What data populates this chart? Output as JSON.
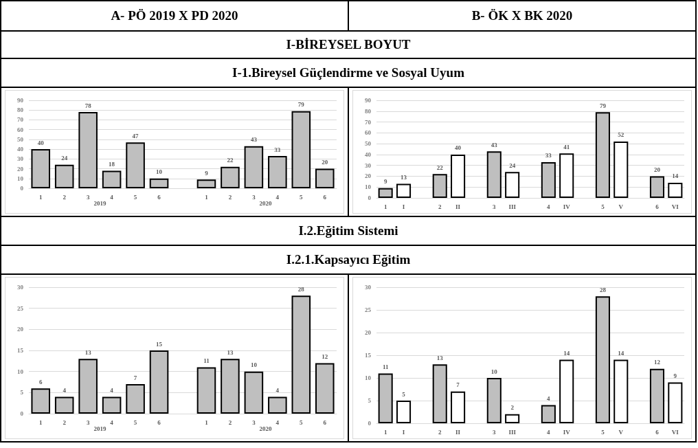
{
  "chart_data": [
    {
      "type": "bar",
      "title": "A-  PÖ 2019 X PD 2020",
      "subtitle": "I-BİREYSEL BOYUT",
      "categories": [
        "1",
        "2",
        "3",
        "4",
        "5",
        "6",
        null,
        "1",
        "2",
        "3",
        "4",
        "5",
        "6"
      ],
      "values": [
        40,
        24,
        78,
        18,
        47,
        10,
        null,
        9,
        22,
        43,
        33,
        79,
        20
      ],
      "color": "#bfbfbf",
      "annotations": [
        "2019",
        "2020"
      ],
      "ylim": [
        0,
        90
      ],
      "yticks": [
        0,
        10,
        20,
        30,
        40,
        50,
        60,
        70,
        80,
        90
      ],
      "grid": "y",
      "data_labels": true
    },
    {
      "type": "bar",
      "title": "B-  ÖK  X  BK  2020",
      "subtitle": "I-1.Bireysel Güçlendirme ve Sosyal Uyum",
      "categories": [
        "1",
        "I",
        null,
        "2",
        "II",
        null,
        "3",
        "III",
        null,
        "4",
        "IV",
        null,
        "5",
        "V",
        null,
        "6",
        "VI"
      ],
      "values": [
        9,
        13,
        null,
        22,
        40,
        null,
        43,
        24,
        null,
        33,
        41,
        null,
        79,
        52,
        null,
        20,
        14
      ],
      "colors": [
        "#bfbfbf",
        "#ffffff",
        null,
        "#bfbfbf",
        "#ffffff",
        null,
        "#bfbfbf",
        "#ffffff",
        null,
        "#bfbfbf",
        "#ffffff",
        null,
        "#bfbfbf",
        "#ffffff",
        null,
        "#bfbfbf",
        "#ffffff"
      ],
      "ylim": [
        0,
        90
      ],
      "yticks": [
        0,
        10,
        20,
        30,
        40,
        50,
        60,
        70,
        80,
        90
      ],
      "grid": "y",
      "data_labels": true
    },
    {
      "type": "bar",
      "subtitle": "I.2.Eğitim Sistemi",
      "categories": [
        "1",
        "2",
        "3",
        "4",
        "5",
        "6",
        null,
        "1",
        "2",
        "3",
        "4",
        "5",
        "6"
      ],
      "values": [
        6,
        4,
        13,
        4,
        7,
        15,
        null,
        11,
        13,
        10,
        4,
        28,
        12
      ],
      "color": "#bfbfbf",
      "annotations": [
        "2019",
        "2020"
      ],
      "ylim": [
        0,
        30
      ],
      "yticks": [
        0,
        5,
        10,
        15,
        20,
        25,
        30
      ],
      "grid": "y",
      "data_labels": true
    },
    {
      "type": "bar",
      "subtitle": "I.2.1.Kapsayıcı Eğitim",
      "categories": [
        "1",
        "I",
        null,
        "2",
        "II",
        null,
        "3",
        "III",
        null,
        "4",
        "IV",
        null,
        "5",
        "V",
        null,
        "6",
        "VI"
      ],
      "values": [
        11,
        5,
        null,
        13,
        7,
        null,
        10,
        2,
        null,
        4,
        14,
        null,
        28,
        14,
        null,
        12,
        9
      ],
      "colors": [
        "#bfbfbf",
        "#ffffff",
        null,
        "#bfbfbf",
        "#ffffff",
        null,
        "#bfbfbf",
        "#ffffff",
        null,
        "#bfbfbf",
        "#ffffff",
        null,
        "#bfbfbf",
        "#ffffff",
        null,
        "#bfbfbf",
        "#ffffff"
      ],
      "ylim": [
        0,
        30
      ],
      "yticks": [
        0,
        5,
        10,
        15,
        20,
        25,
        30
      ],
      "grid": "y",
      "data_labels": true
    }
  ]
}
